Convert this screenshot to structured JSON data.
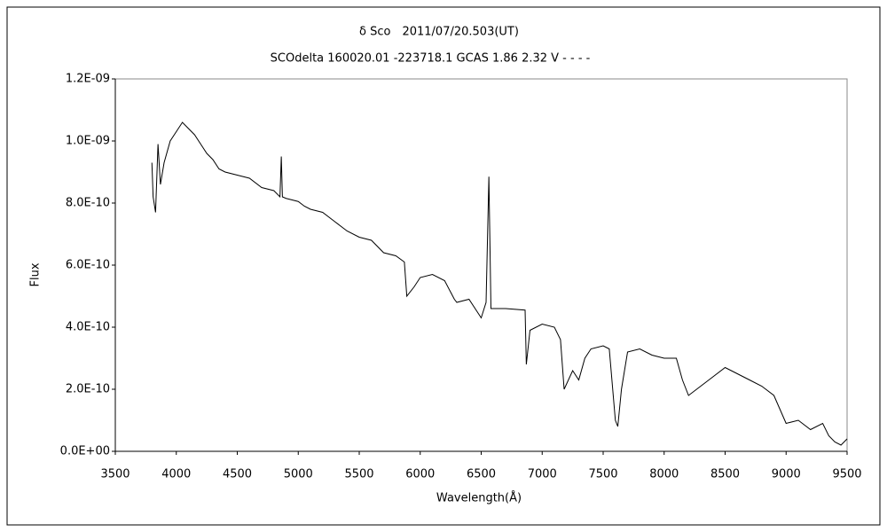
{
  "chart_data": {
    "type": "line",
    "title": "δ Sco　2011/07/20.503(UT)",
    "subtitle": "SCOdelta 160020.01 -223718.1 GCAS 1.86 2.32 V - - - -",
    "x_label": "Wavelength(Å)",
    "y_label": "Flux",
    "xlim": [
      3500,
      9500
    ],
    "xticks": [
      3500,
      4000,
      4500,
      5000,
      5500,
      6000,
      6500,
      7000,
      7500,
      8000,
      8500,
      9000,
      9500
    ],
    "ylim": [
      0,
      1.2e-09
    ],
    "yticks": [
      {
        "value": 0,
        "label": "0.0E+00"
      },
      {
        "value": 2e-10,
        "label": "2.0E-10"
      },
      {
        "value": 4e-10,
        "label": "4.0E-10"
      },
      {
        "value": 6e-10,
        "label": "6.0E-10"
      },
      {
        "value": 8e-10,
        "label": "8.0E-10"
      },
      {
        "value": 1e-09,
        "label": "1.0E-09"
      },
      {
        "value": 1.2e-09,
        "label": "1.2E-09"
      }
    ],
    "grid": false,
    "series": [
      {
        "name": "Flux",
        "color": "#000000",
        "x": [
          3800,
          3810,
          3830,
          3850,
          3870,
          3900,
          3950,
          4000,
          4050,
          4100,
          4150,
          4200,
          4250,
          4300,
          4350,
          4400,
          4500,
          4600,
          4700,
          4800,
          4850,
          4861,
          4870,
          4900,
          5000,
          5050,
          5100,
          5200,
          5300,
          5400,
          5500,
          5600,
          5700,
          5800,
          5870,
          5890,
          5950,
          6000,
          6100,
          6200,
          6280,
          6300,
          6400,
          6500,
          6540,
          6563,
          6580,
          6700,
          6860,
          6870,
          6900,
          7000,
          7100,
          7150,
          7180,
          7250,
          7300,
          7350,
          7400,
          7500,
          7550,
          7600,
          7620,
          7650,
          7700,
          7800,
          7900,
          8000,
          8100,
          8150,
          8200,
          8300,
          8400,
          8500,
          8600,
          8700,
          8800,
          8900,
          9000,
          9100,
          9200,
          9300,
          9350,
          9400,
          9450,
          9500
        ],
        "values": [
          9.3e-10,
          8.2e-10,
          7.7e-10,
          9.9e-10,
          8.6e-10,
          9.3e-10,
          1e-09,
          1.03e-09,
          1.06e-09,
          1.04e-09,
          1.02e-09,
          9.9e-10,
          9.6e-10,
          9.4e-10,
          9.1e-10,
          9e-10,
          8.9e-10,
          8.8e-10,
          8.5e-10,
          8.4e-10,
          8.2e-10,
          9.5e-10,
          8.2e-10,
          8.15e-10,
          8.05e-10,
          7.9e-10,
          7.8e-10,
          7.7e-10,
          7.4e-10,
          7.1e-10,
          6.9e-10,
          6.8e-10,
          6.4e-10,
          6.3e-10,
          6.1e-10,
          5e-10,
          5.3e-10,
          5.6e-10,
          5.7e-10,
          5.5e-10,
          4.9e-10,
          4.8e-10,
          4.9e-10,
          4.3e-10,
          4.8e-10,
          8.85e-10,
          4.6e-10,
          4.6e-10,
          4.55e-10,
          2.8e-10,
          3.9e-10,
          4.1e-10,
          4e-10,
          3.6e-10,
          2e-10,
          2.6e-10,
          2.3e-10,
          3e-10,
          3.3e-10,
          3.4e-10,
          3.3e-10,
          1e-10,
          8e-11,
          2e-10,
          3.2e-10,
          3.3e-10,
          3.1e-10,
          3e-10,
          3e-10,
          2.3e-10,
          1.8e-10,
          2.1e-10,
          2.4e-10,
          2.7e-10,
          2.5e-10,
          2.3e-10,
          2.1e-10,
          1.8e-10,
          9e-11,
          1e-10,
          7e-11,
          9e-11,
          5e-11,
          3e-11,
          2e-11,
          4e-11
        ]
      }
    ]
  }
}
